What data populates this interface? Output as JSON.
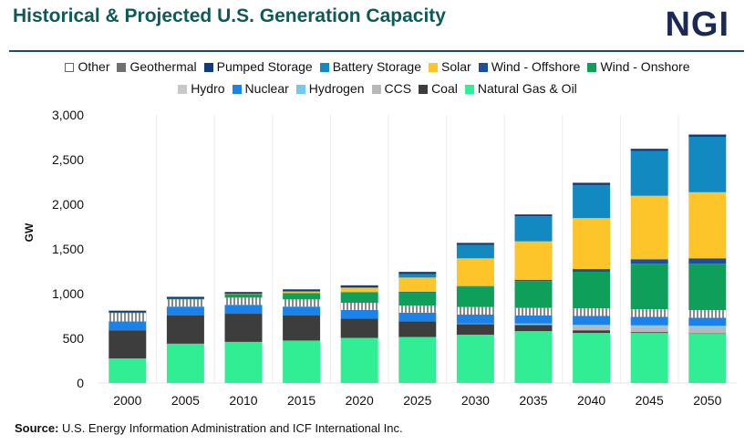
{
  "title": "Historical & Projected U.S. Generation Capacity",
  "logo": "NGI",
  "source_label": "Source:",
  "source_text": " U.S. Energy Information Administration and ICF International Inc.",
  "chart_data": {
    "type": "bar",
    "stacked": true,
    "title": "Historical & Projected U.S. Generation Capacity",
    "xlabel": "",
    "ylabel": "GW",
    "ylim": [
      0,
      3000
    ],
    "yticks": [
      0,
      500,
      1000,
      1500,
      2000,
      2500,
      3000
    ],
    "ytick_labels": [
      "0",
      "500",
      "1,000",
      "1,500",
      "2,000",
      "2,500",
      "3,000"
    ],
    "grid": "vertical separators",
    "legend_placement": "top",
    "categories": [
      "2000",
      "2005",
      "2010",
      "2015",
      "2020",
      "2025",
      "2030",
      "2035",
      "2040",
      "2045",
      "2050"
    ],
    "legend_order": [
      "Other",
      "Geothermal",
      "Pumped Storage",
      "Battery Storage",
      "Solar",
      "Wind - Offshore",
      "Wind - Onshore",
      "Hydro",
      "Nuclear",
      "Hydrogen",
      "CCS",
      "Coal",
      "Natural Gas & Oil"
    ],
    "series": [
      {
        "name": "Natural Gas & Oil",
        "color": "#31ee94",
        "values": [
          275,
          440,
          460,
          475,
          505,
          515,
          540,
          580,
          560,
          560,
          550
        ]
      },
      {
        "name": "Coal",
        "color": "#3d3d3d",
        "values": [
          315,
          315,
          315,
          280,
          215,
          175,
          120,
          70,
          30,
          10,
          5
        ]
      },
      {
        "name": "CCS",
        "color": "#b8b8b8",
        "values": [
          0,
          0,
          0,
          0,
          0,
          0,
          0,
          0,
          50,
          60,
          70
        ]
      },
      {
        "name": "Hydrogen",
        "color": "#72c8f0",
        "values": [
          0,
          0,
          0,
          0,
          0,
          0,
          5,
          15,
          10,
          15,
          15
        ]
      },
      {
        "name": "Nuclear",
        "color": "#1a82e8",
        "values": [
          100,
          100,
          100,
          100,
          98,
          97,
          100,
          90,
          100,
          95,
          90
        ]
      },
      {
        "name": "Hydro",
        "color": "#c8c8c8",
        "pattern": "striped",
        "values": [
          95,
          80,
          80,
          80,
          80,
          80,
          85,
          85,
          85,
          85,
          85
        ]
      },
      {
        "name": "Wind - Onshore",
        "color": "#0ea05a",
        "values": [
          3,
          9,
          40,
          70,
          120,
          150,
          230,
          300,
          410,
          510,
          520
        ]
      },
      {
        "name": "Wind - Offshore",
        "color": "#1a4fa0",
        "values": [
          0,
          0,
          0,
          0,
          0,
          3,
          5,
          15,
          30,
          50,
          60
        ]
      },
      {
        "name": "Solar",
        "color": "#fdc52a",
        "values": [
          0,
          0,
          2,
          20,
          50,
          160,
          310,
          430,
          570,
          710,
          740
        ]
      },
      {
        "name": "Battery Storage",
        "color": "#1289c0",
        "values": [
          0,
          0,
          0,
          0,
          2,
          40,
          150,
          280,
          370,
          500,
          620
        ]
      },
      {
        "name": "Pumped Storage",
        "color": "#0d3d80",
        "values": [
          20,
          20,
          20,
          22,
          22,
          22,
          22,
          20,
          25,
          25,
          25
        ]
      },
      {
        "name": "Geothermal",
        "color": "#707070",
        "values": [
          3,
          3,
          3,
          3,
          3,
          3,
          3,
          3,
          3,
          3,
          3
        ]
      },
      {
        "name": "Other",
        "color": "#ffffff",
        "values": [
          5,
          5,
          5,
          5,
          5,
          5,
          5,
          5,
          5,
          5,
          5
        ]
      }
    ]
  }
}
